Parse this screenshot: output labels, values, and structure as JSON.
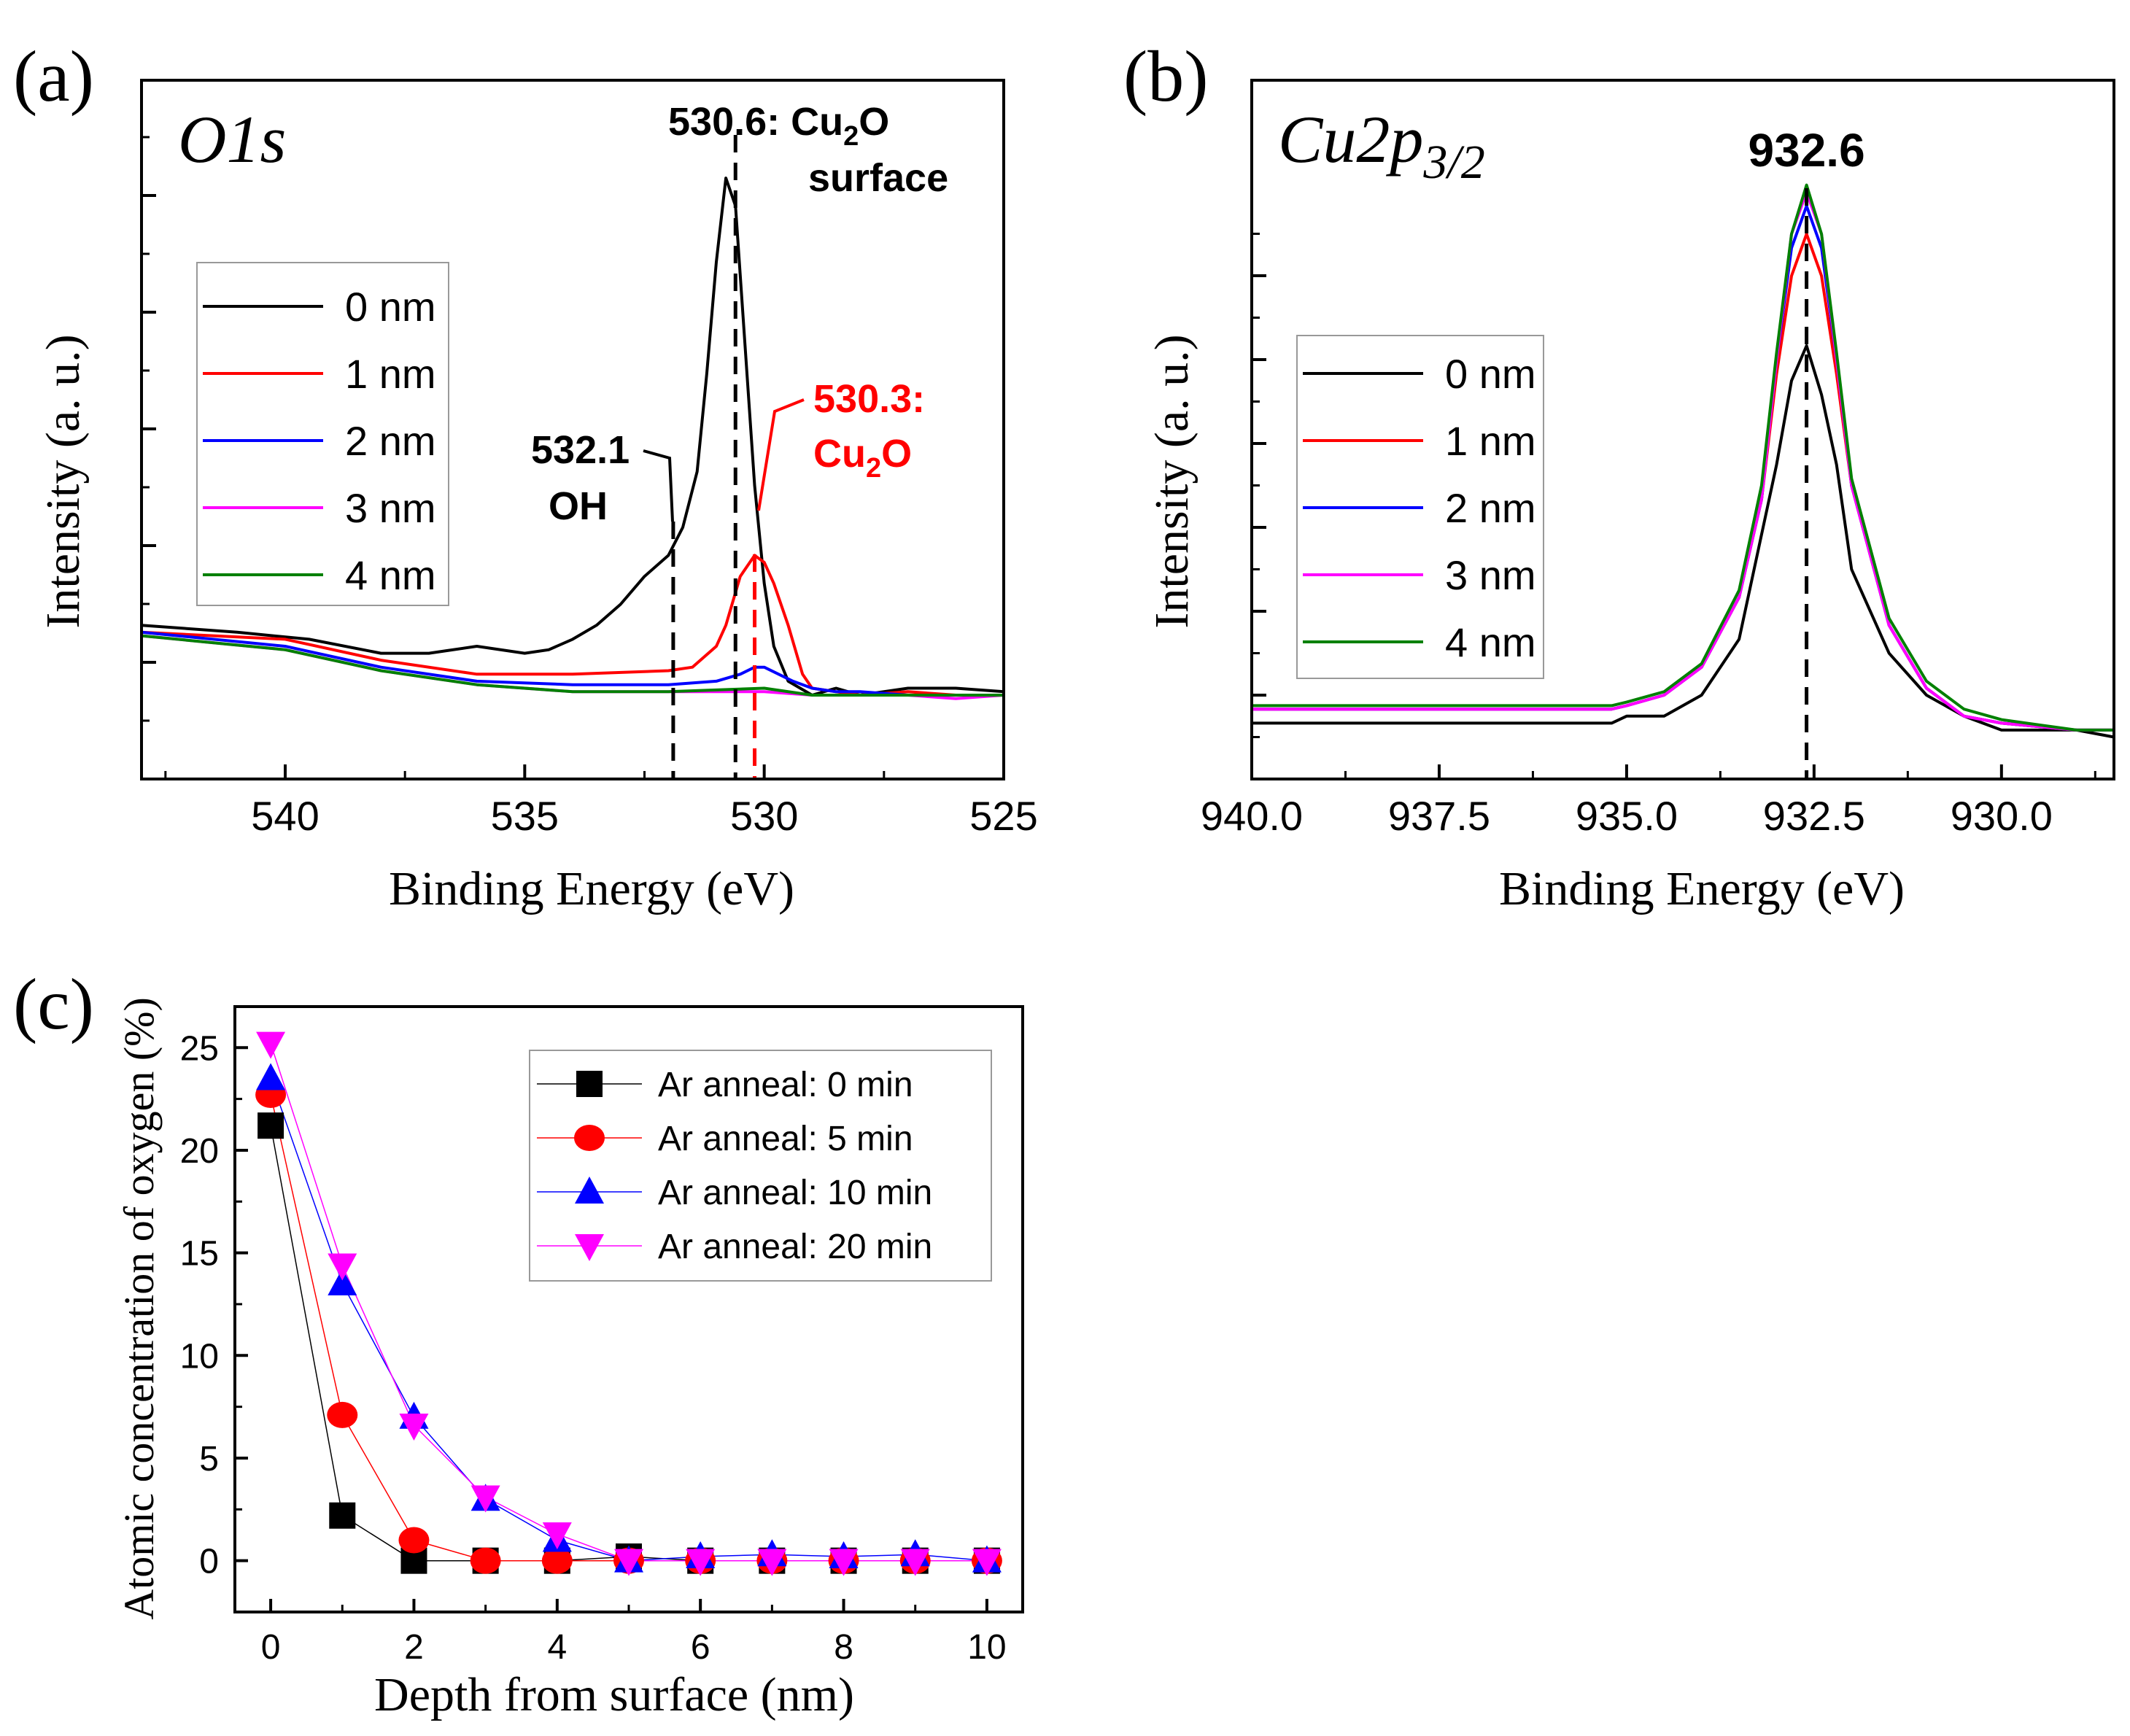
{
  "chart_data": [
    {
      "id": "a",
      "panel_label": "(a)",
      "type": "line",
      "title": "O1s",
      "xlabel": "Binding Energy (eV)",
      "ylabel": "Intensity (a. u.)",
      "xlim": [
        543,
        525
      ],
      "ylim": [
        0,
        100
      ],
      "xticks": [
        "540",
        "535",
        "530",
        "525"
      ],
      "xtick_values": [
        540,
        535,
        530,
        525
      ],
      "legend_position": "left-middle",
      "series": [
        {
          "name": "0 nm",
          "color": "#000000",
          "x": [
            543,
            541,
            539.5,
            538,
            537,
            536,
            535,
            534.5,
            534,
            533.5,
            533,
            532.5,
            532,
            531.7,
            531.4,
            531.2,
            531,
            530.8,
            530.6,
            530.4,
            530.2,
            530,
            529.8,
            529.5,
            529,
            528.5,
            528,
            527,
            526,
            525
          ],
          "y": [
            22,
            21,
            20,
            18,
            18,
            19,
            18,
            18.5,
            20,
            22,
            25,
            29,
            32,
            36,
            44,
            58,
            74,
            86,
            82,
            62,
            42,
            28,
            19,
            14,
            12,
            13,
            12,
            13,
            13,
            12.5
          ]
        },
        {
          "name": "1 nm",
          "color": "#ff0000",
          "x": [
            543,
            540,
            538,
            536,
            534,
            532,
            531.5,
            531,
            530.8,
            530.5,
            530.2,
            530,
            529.8,
            529.5,
            529.2,
            529,
            528.5,
            528,
            527,
            526,
            525
          ],
          "y": [
            21,
            20,
            17,
            15,
            15,
            15.5,
            16,
            19,
            22,
            29,
            32,
            31,
            28,
            22,
            15,
            13,
            12.5,
            12,
            12.5,
            12,
            12
          ]
        },
        {
          "name": "2 nm",
          "color": "#0000ff",
          "x": [
            543,
            540,
            538,
            536,
            534,
            532,
            531,
            530.5,
            530.2,
            530,
            529.7,
            529.4,
            529,
            528.5,
            528,
            527,
            526,
            525
          ],
          "y": [
            21,
            19,
            16,
            14,
            13.5,
            13.5,
            14,
            15,
            16,
            16,
            15,
            14,
            13,
            12.5,
            12.5,
            12,
            12,
            12
          ]
        },
        {
          "name": "3 nm",
          "color": "#ff00ff",
          "x": [
            543,
            540,
            538,
            536,
            534,
            532,
            530,
            529,
            528,
            527,
            526,
            525
          ],
          "y": [
            20.5,
            18.5,
            15.5,
            13.5,
            12.5,
            12.5,
            12.5,
            12,
            12,
            12,
            11.5,
            12
          ]
        },
        {
          "name": "4 nm",
          "color": "#008000",
          "x": [
            543,
            540,
            538,
            536,
            534,
            532,
            530,
            529,
            528,
            527,
            526,
            525
          ],
          "y": [
            20.5,
            18.5,
            15.5,
            13.5,
            12.5,
            12.5,
            13,
            12,
            12,
            12,
            12,
            12
          ]
        }
      ],
      "annotations": [
        {
          "x": 530.6,
          "label_line1": "530.6: Cu",
          "sub": "2",
          "label_line1_end": "O",
          "label_line2": "surface",
          "color": "#000000"
        },
        {
          "x": 531.9,
          "label_line1": "532.1",
          "label_line2": "OH",
          "color": "#000000"
        },
        {
          "x": 530.2,
          "label_line1": "530.3:",
          "label_line2_pre": "Cu",
          "sub": "2",
          "label_line2_end": "O",
          "color": "#ff0000"
        }
      ]
    },
    {
      "id": "b",
      "panel_label": "(b)",
      "type": "line",
      "title": "Cu2p",
      "title_sub": "3/2",
      "xlabel": "Binding Energy (eV)",
      "ylabel": "Intensity (a. u.)",
      "xlim": [
        940,
        928.5
      ],
      "ylim": [
        0,
        100
      ],
      "xticks": [
        "940.0",
        "937.5",
        "935.0",
        "932.5",
        "930.0"
      ],
      "xtick_values": [
        940,
        937.5,
        935,
        932.5,
        930
      ],
      "legend_position": "left-middle",
      "series": [
        {
          "name": "0 nm",
          "color": "#000000",
          "x": [
            940,
            935.2,
            935,
            934.5,
            934,
            933.5,
            933,
            932.8,
            932.6,
            932.4,
            932.2,
            932,
            931.5,
            931,
            930.5,
            930,
            929,
            928.5
          ],
          "y": [
            8,
            8,
            9,
            9,
            12,
            20,
            45,
            57,
            62,
            55,
            45,
            30,
            18,
            12,
            9,
            7,
            7,
            6
          ]
        },
        {
          "name": "1 nm",
          "color": "#ff0000",
          "x": [
            940,
            936,
            935.2,
            935,
            934.5,
            934,
            933.5,
            933.2,
            933,
            932.8,
            932.6,
            932.4,
            932.2,
            932,
            931.5,
            931,
            930.5,
            930,
            929,
            928.5
          ],
          "y": [
            10,
            10,
            10,
            10.5,
            12,
            16,
            26,
            40,
            58,
            72,
            78,
            72,
            58,
            42,
            22,
            13,
            9,
            8,
            7,
            7
          ]
        },
        {
          "name": "2 nm",
          "color": "#0000ff",
          "x": [
            940,
            936,
            935.2,
            935,
            934.5,
            934,
            933.5,
            933.2,
            933,
            932.8,
            932.6,
            932.4,
            932.2,
            932,
            931.5,
            931,
            930.5,
            930,
            929,
            928.5
          ],
          "y": [
            10,
            10,
            10,
            10.5,
            12,
            16,
            26,
            40,
            60,
            76,
            82,
            76,
            60,
            42,
            22,
            13,
            9,
            8,
            7,
            7
          ]
        },
        {
          "name": "3 nm",
          "color": "#ff00ff",
          "x": [
            940,
            936,
            935.2,
            935,
            934.5,
            934,
            933.5,
            933.2,
            933,
            932.8,
            932.6,
            932.4,
            932.2,
            932,
            931.5,
            931,
            930.5,
            930,
            929,
            928.5
          ],
          "y": [
            10,
            10,
            10,
            10.5,
            12,
            16,
            26,
            40,
            60,
            78,
            84,
            78,
            60,
            42,
            22,
            13,
            9,
            8,
            7,
            7
          ]
        },
        {
          "name": "4 nm",
          "color": "#008000",
          "x": [
            940,
            936,
            935.2,
            935,
            934.5,
            934,
            933.5,
            933.2,
            933,
            932.8,
            932.6,
            932.4,
            932.2,
            932,
            931.5,
            931,
            930.5,
            930,
            929,
            928.5
          ],
          "y": [
            10.5,
            10.5,
            10.5,
            11,
            12.5,
            16.5,
            27,
            42,
            61,
            78,
            85,
            78,
            61,
            43,
            23,
            14,
            10,
            8.5,
            7,
            7
          ]
        }
      ],
      "annotations": [
        {
          "x": 932.6,
          "label": "932.6",
          "color": "#000000"
        }
      ]
    },
    {
      "id": "c",
      "panel_label": "(c)",
      "type": "scatter",
      "title": "",
      "xlabel": "Depth from surface (nm)",
      "ylabel": "Atomic concentration of oxygen (%)",
      "xlim": [
        -0.5,
        10.5
      ],
      "ylim": [
        -2.5,
        27
      ],
      "xticks": [
        "0",
        "2",
        "4",
        "6",
        "8",
        "10"
      ],
      "xtick_values": [
        0,
        2,
        4,
        6,
        8,
        10
      ],
      "yticks": [
        "0",
        "5",
        "10",
        "15",
        "20",
        "25"
      ],
      "ytick_values": [
        0,
        5,
        10,
        15,
        20,
        25
      ],
      "legend_position": "top-right",
      "series": [
        {
          "name": "Ar anneal: 0 min",
          "color": "#000000",
          "marker": "square",
          "x": [
            0,
            1,
            2,
            3,
            4,
            5,
            6,
            7,
            8,
            9,
            10
          ],
          "y": [
            21.2,
            2.2,
            0,
            0,
            0,
            0.2,
            0,
            0,
            0,
            0,
            0
          ]
        },
        {
          "name": "Ar anneal: 5 min",
          "color": "#ff0000",
          "marker": "circle",
          "x": [
            0,
            1,
            2,
            3,
            4,
            5,
            6,
            7,
            8,
            9,
            10
          ],
          "y": [
            22.7,
            7.1,
            1.0,
            0,
            0,
            0,
            0,
            0,
            0,
            0,
            0
          ]
        },
        {
          "name": "Ar anneal: 10 min",
          "color": "#0000ff",
          "marker": "triangle-up",
          "x": [
            0,
            1,
            2,
            3,
            4,
            5,
            6,
            7,
            8,
            9,
            10
          ],
          "y": [
            23.5,
            13.5,
            7.0,
            3.0,
            1.0,
            0,
            0.2,
            0.3,
            0.2,
            0.3,
            0
          ]
        },
        {
          "name": "Ar anneal: 20 min",
          "color": "#ff00ff",
          "marker": "triangle-down",
          "x": [
            0,
            1,
            2,
            3,
            4,
            5,
            6,
            7,
            8,
            9,
            10
          ],
          "y": [
            25.2,
            14.4,
            6.6,
            3.1,
            1.3,
            0,
            0,
            0,
            0,
            0,
            0
          ]
        }
      ]
    }
  ]
}
